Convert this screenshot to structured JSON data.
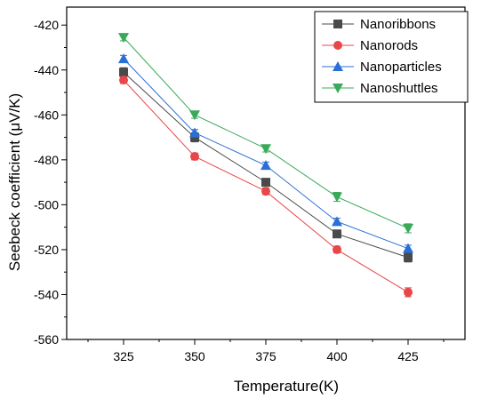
{
  "chart_data": {
    "type": "line",
    "title": "",
    "xlabel": "Temperature(K)",
    "ylabel": "Seebeck coefficient (μV/K)",
    "x": [
      325,
      350,
      375,
      400,
      425
    ],
    "x_ticks": [
      "325",
      "350",
      "375",
      "400",
      "425"
    ],
    "y_ticks": [
      "-560",
      "-540",
      "-520",
      "-500",
      "-480",
      "-460",
      "-440",
      "-420"
    ],
    "xlim": [
      305,
      445
    ],
    "ylim": [
      -560,
      -412
    ],
    "grid": false,
    "legend_position": "top-right",
    "series": [
      {
        "name": "Nanoribbons",
        "color": "#4a4a4a",
        "marker": "square",
        "values": [
          -441,
          -470,
          -490,
          -513,
          -523.5
        ],
        "errors": [
          2,
          2,
          1.5,
          1.5,
          2
        ]
      },
      {
        "name": "Nanorods",
        "color": "#e8474a",
        "marker": "circle",
        "values": [
          -444.5,
          -478.5,
          -494,
          -520,
          -539
        ],
        "errors": [
          1.5,
          1.5,
          1.5,
          1.5,
          2
        ]
      },
      {
        "name": "Nanoparticles",
        "color": "#2a6fd6",
        "marker": "triangle-up",
        "values": [
          -435,
          -468,
          -482.5,
          -507.5,
          -519.5
        ],
        "errors": [
          1.5,
          1.5,
          1.5,
          1.5,
          1.5
        ]
      },
      {
        "name": "Nanoshuttles",
        "color": "#3aaa5a",
        "marker": "triangle-down",
        "values": [
          -425.5,
          -460,
          -475,
          -496.5,
          -510.5
        ],
        "errors": [
          1.5,
          1.5,
          1.5,
          2,
          2
        ]
      }
    ]
  }
}
